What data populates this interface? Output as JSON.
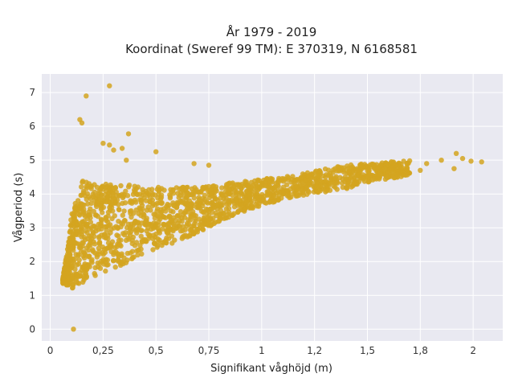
{
  "chart_data": {
    "type": "scatter",
    "title": "År 1979 - 2019",
    "subtitle": "Koordinat (Sweref 99 TM): E 370319, N 6168581",
    "xlabel": "Signifikant våghöjd (m)",
    "ylabel": "Vågperiod (s)",
    "xlim": [
      -0.04,
      2.14
    ],
    "ylim": [
      -0.35,
      7.55
    ],
    "x_ticks": [
      0,
      0.25,
      0.5,
      0.75,
      1,
      1.25,
      1.5,
      1.75,
      2
    ],
    "x_tick_labels": [
      "0",
      "0,25",
      "0,5",
      "0,75",
      "1",
      "1,2",
      "1,5",
      "1,8",
      "2"
    ],
    "y_ticks": [
      0,
      1,
      2,
      3,
      4,
      5,
      6,
      7
    ],
    "y_tick_labels": [
      "0",
      "1",
      "2",
      "3",
      "4",
      "5",
      "6",
      "7"
    ],
    "grid": true,
    "legend": "none",
    "marker_color": "#D4A520",
    "plot_background": "#E9E9F1",
    "outliers": [
      {
        "x": 0.11,
        "y": 0.0
      },
      {
        "x": 0.17,
        "y": 6.9
      },
      {
        "x": 0.28,
        "y": 7.2
      },
      {
        "x": 0.14,
        "y": 6.2
      },
      {
        "x": 0.15,
        "y": 6.1
      },
      {
        "x": 0.37,
        "y": 5.78
      },
      {
        "x": 0.25,
        "y": 5.5
      },
      {
        "x": 0.28,
        "y": 5.45
      },
      {
        "x": 0.3,
        "y": 5.3
      },
      {
        "x": 0.34,
        "y": 5.35
      },
      {
        "x": 0.5,
        "y": 5.25
      },
      {
        "x": 0.36,
        "y": 5.0
      },
      {
        "x": 0.68,
        "y": 4.9
      },
      {
        "x": 0.75,
        "y": 4.85
      },
      {
        "x": 1.75,
        "y": 4.7
      },
      {
        "x": 1.85,
        "y": 5.0
      },
      {
        "x": 1.92,
        "y": 5.2
      },
      {
        "x": 1.95,
        "y": 5.05
      },
      {
        "x": 1.99,
        "y": 4.97
      },
      {
        "x": 2.04,
        "y": 4.95
      },
      {
        "x": 1.91,
        "y": 4.75
      },
      {
        "x": 1.78,
        "y": 4.9
      },
      {
        "x": 1.7,
        "y": 4.98
      },
      {
        "x": 1.63,
        "y": 4.85
      }
    ],
    "density_band": [
      {
        "x": 0.06,
        "ymin": 1.35,
        "ymax": 1.55
      },
      {
        "x": 0.08,
        "ymin": 1.3,
        "ymax": 2.3
      },
      {
        "x": 0.1,
        "ymin": 1.2,
        "ymax": 3.4
      },
      {
        "x": 0.15,
        "ymin": 1.35,
        "ymax": 4.4
      },
      {
        "x": 0.2,
        "ymin": 1.55,
        "ymax": 4.3
      },
      {
        "x": 0.3,
        "ymin": 1.8,
        "ymax": 4.3
      },
      {
        "x": 0.4,
        "ymin": 2.05,
        "ymax": 4.3
      },
      {
        "x": 0.5,
        "ymin": 2.35,
        "ymax": 4.2
      },
      {
        "x": 0.6,
        "ymin": 2.6,
        "ymax": 4.2
      },
      {
        "x": 0.7,
        "ymin": 2.85,
        "ymax": 4.2
      },
      {
        "x": 0.8,
        "ymin": 3.2,
        "ymax": 4.3
      },
      {
        "x": 0.9,
        "ymin": 3.45,
        "ymax": 4.35
      },
      {
        "x": 1.0,
        "ymin": 3.65,
        "ymax": 4.45
      },
      {
        "x": 1.1,
        "ymin": 3.85,
        "ymax": 4.5
      },
      {
        "x": 1.2,
        "ymin": 3.95,
        "ymax": 4.6
      },
      {
        "x": 1.3,
        "ymin": 4.05,
        "ymax": 4.75
      },
      {
        "x": 1.4,
        "ymin": 4.15,
        "ymax": 4.85
      },
      {
        "x": 1.5,
        "ymin": 4.35,
        "ymax": 4.9
      },
      {
        "x": 1.6,
        "ymin": 4.45,
        "ymax": 4.95
      },
      {
        "x": 1.7,
        "ymin": 4.55,
        "ymax": 5.0
      }
    ]
  }
}
